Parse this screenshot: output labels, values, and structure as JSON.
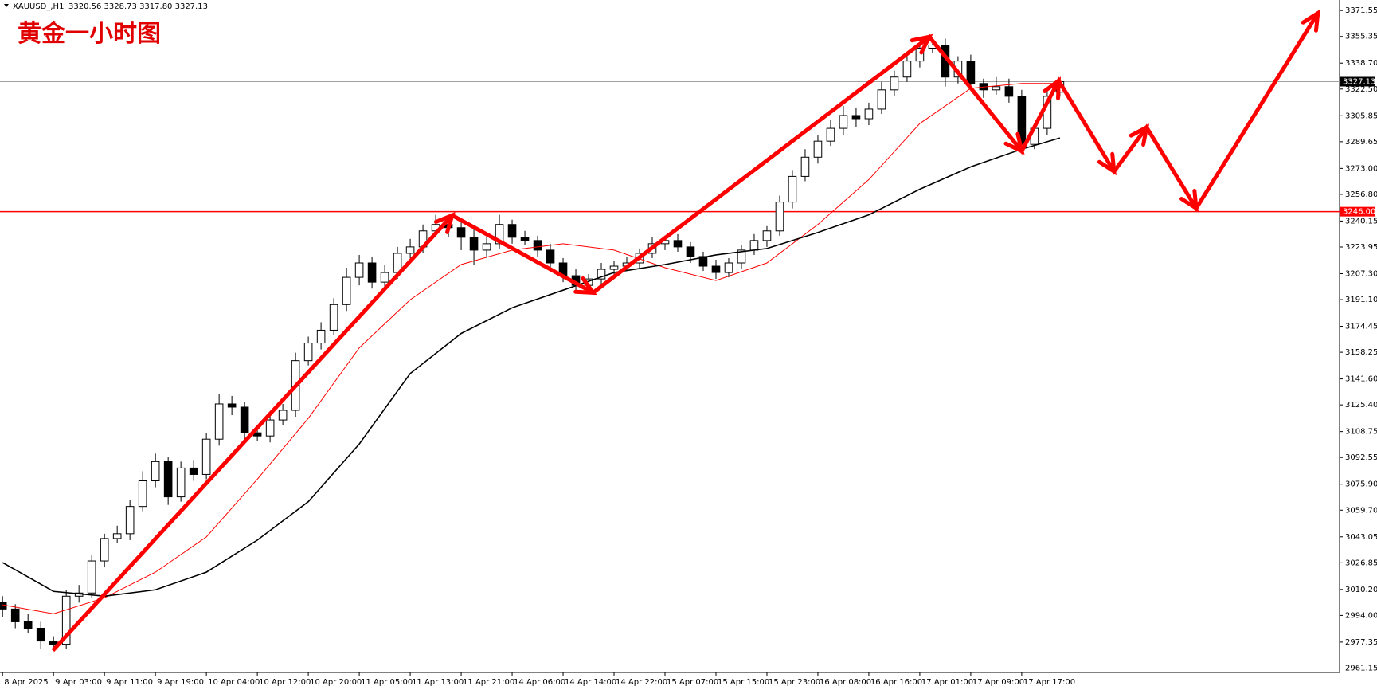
{
  "chart_data": {
    "type": "candlestick",
    "title": "黄金一小时图",
    "symbol": "XAUUSD_,H1",
    "ohlc_text": "3320.56 3328.73 3317.80 3327.13",
    "x": [
      0,
      2,
      4,
      6,
      8,
      10,
      12,
      14,
      16,
      18,
      20,
      22,
      24,
      26,
      28,
      30,
      32,
      34,
      36,
      38,
      40,
      42,
      44,
      46,
      48,
      50,
      52,
      54,
      56,
      58,
      60,
      62,
      64,
      66,
      68,
      70,
      72,
      74,
      76,
      78,
      80,
      82,
      84,
      86,
      88,
      90,
      92,
      94,
      96,
      98,
      100,
      102,
      104,
      106,
      108,
      110,
      112,
      114,
      116,
      118,
      120,
      122,
      124,
      126,
      128,
      130,
      132,
      134,
      136,
      138,
      140,
      142,
      144,
      146,
      148,
      150,
      152,
      154,
      156,
      158,
      160,
      162,
      164,
      166
    ],
    "open": [
      3002,
      2998,
      2990,
      2986,
      2978,
      2976,
      3006,
      3008,
      3028,
      3042,
      3045,
      3062,
      3078,
      3090,
      3068,
      3086,
      3082,
      3104,
      3126,
      3124,
      3108,
      3106,
      3116,
      3122,
      3153,
      3164,
      3172,
      3188,
      3205,
      3214,
      3202,
      3208,
      3220,
      3224,
      3234,
      3238,
      3236,
      3230,
      3222,
      3226,
      3238,
      3230,
      3228,
      3222,
      3214,
      3206,
      3200,
      3204,
      3210,
      3212,
      3214,
      3220,
      3226,
      3228,
      3224,
      3218,
      3212,
      3208,
      3214,
      3222,
      3228,
      3234,
      3252,
      3268,
      3280,
      3290,
      3298,
      3306,
      3304,
      3310,
      3322,
      3330,
      3340,
      3348,
      3350,
      3330,
      3340,
      3326,
      3322,
      3324,
      3318,
      3288,
      3298,
      3320.56
    ],
    "high": [
      3006,
      3001,
      2995,
      2990,
      2981,
      3010,
      3013,
      3032,
      3045,
      3050,
      3066,
      3084,
      3095,
      3093,
      3090,
      3091,
      3108,
      3132,
      3131,
      3127,
      3112,
      3121,
      3126,
      3158,
      3168,
      3177,
      3192,
      3211,
      3219,
      3218,
      3213,
      3224,
      3229,
      3238,
      3244,
      3243,
      3240,
      3235,
      3230,
      3244,
      3241,
      3234,
      3231,
      3226,
      3217,
      3210,
      3207,
      3214,
      3215,
      3218,
      3223,
      3230,
      3231,
      3232,
      3227,
      3221,
      3216,
      3217,
      3225,
      3232,
      3237,
      3256,
      3272,
      3285,
      3294,
      3303,
      3312,
      3311,
      3314,
      3327,
      3334,
      3345,
      3352,
      3355,
      3354,
      3343,
      3344,
      3329,
      3330,
      3329,
      3322,
      3301,
      3323,
      3328.73
    ],
    "low": [
      2993,
      2986,
      2983,
      2973,
      2972,
      2973,
      3002,
      3005,
      3024,
      3039,
      3041,
      3059,
      3074,
      3063,
      3065,
      3078,
      3079,
      3100,
      3119,
      3104,
      3103,
      3102,
      3113,
      3118,
      3150,
      3160,
      3169,
      3184,
      3200,
      3198,
      3199,
      3204,
      3217,
      3220,
      3231,
      3230,
      3222,
      3213,
      3218,
      3223,
      3226,
      3225,
      3218,
      3211,
      3202,
      3195,
      3196,
      3201,
      3206,
      3209,
      3210,
      3217,
      3222,
      3221,
      3214,
      3209,
      3204,
      3205,
      3210,
      3219,
      3224,
      3231,
      3248,
      3265,
      3276,
      3287,
      3294,
      3299,
      3300,
      3307,
      3318,
      3327,
      3336,
      3345,
      3324,
      3326,
      3322,
      3317,
      3319,
      3314,
      3283,
      3285,
      3294,
      3317.8
    ],
    "close": [
      2998,
      2990,
      2986,
      2978,
      2976,
      3006,
      3008,
      3028,
      3042,
      3045,
      3062,
      3078,
      3090,
      3068,
      3086,
      3082,
      3104,
      3126,
      3124,
      3108,
      3106,
      3116,
      3122,
      3153,
      3164,
      3172,
      3188,
      3205,
      3214,
      3202,
      3208,
      3220,
      3224,
      3234,
      3238,
      3236,
      3230,
      3222,
      3226,
      3238,
      3230,
      3228,
      3222,
      3214,
      3206,
      3200,
      3204,
      3210,
      3212,
      3214,
      3220,
      3226,
      3228,
      3224,
      3218,
      3212,
      3208,
      3214,
      3222,
      3228,
      3234,
      3252,
      3268,
      3280,
      3290,
      3298,
      3306,
      3304,
      3310,
      3322,
      3330,
      3340,
      3348,
      3350,
      3330,
      3340,
      3326,
      3322,
      3324,
      3318,
      3288,
      3298,
      3318,
      3327.13
    ],
    "moving_averages": [
      {
        "color": "#ff0000",
        "width": 1,
        "x": [
          0,
          8,
          16,
          24,
          32,
          40,
          48,
          56,
          64,
          72,
          80,
          88,
          96,
          104,
          112,
          120,
          128,
          136,
          144,
          152,
          160,
          166
        ],
        "values": [
          3000.6,
          2995,
          3005,
          3021,
          3043,
          3079,
          3117,
          3161,
          3191,
          3213,
          3222,
          3226,
          3222,
          3211,
          3203,
          3214,
          3238,
          3266,
          3301,
          3323,
          3326,
          3326
        ]
      },
      {
        "color": "#000000",
        "width": 1.6,
        "x": [
          0,
          8,
          16,
          24,
          32,
          40,
          48,
          56,
          64,
          72,
          80,
          88,
          96,
          104,
          112,
          120,
          128,
          136,
          144,
          152,
          160,
          166
        ],
        "values": [
          3027,
          3009,
          3006,
          3010,
          3021,
          3041,
          3065,
          3101,
          3145,
          3170,
          3186,
          3197,
          3208,
          3213,
          3219,
          3223,
          3233,
          3244,
          3260,
          3274,
          3285,
          3292
        ]
      }
    ],
    "arrows": {
      "color": "#ff0000",
      "x": [
        7.9,
        70.6,
        92.7,
        145.5,
        160,
        165.8,
        174.5,
        179.6,
        187.4,
        206.5
      ],
      "values": [
        2972.1,
        3243.7,
        3195.4,
        3355.1,
        3283.8,
        3327.7,
        3271.1,
        3298.6,
        3248.1,
        3369.9
      ]
    },
    "hline": {
      "value": 3246,
      "label": "3246.00",
      "color": "#ff0000"
    },
    "last_price": 3327.13,
    "xlim": [
      -0.4,
      209.9
    ],
    "ylim": [
      2958.4,
      3378.1
    ],
    "xticks": [
      {
        "value": 0,
        "label": "8 Apr 2025"
      },
      {
        "value": 8,
        "label": "9 Apr 03:00"
      },
      {
        "value": 16,
        "label": "9 Apr 11:00"
      },
      {
        "value": 24,
        "label": "9 Apr 19:00"
      },
      {
        "value": 32,
        "label": "10 Apr 04:00"
      },
      {
        "value": 40,
        "label": "10 Apr 12:00"
      },
      {
        "value": 48,
        "label": "10 Apr 20:00"
      },
      {
        "value": 56,
        "label": "11 Apr 05:00"
      },
      {
        "value": 64,
        "label": "11 Apr 13:00"
      },
      {
        "value": 72,
        "label": "11 Apr 21:00"
      },
      {
        "value": 80,
        "label": "14 Apr 06:00"
      },
      {
        "value": 88,
        "label": "14 Apr 14:00"
      },
      {
        "value": 96,
        "label": "14 Apr 22:00"
      },
      {
        "value": 104,
        "label": "15 Apr 07:00"
      },
      {
        "value": 112,
        "label": "15 Apr 15:00"
      },
      {
        "value": 120,
        "label": "15 Apr 23:00"
      },
      {
        "value": 128,
        "label": "16 Apr 08:00"
      },
      {
        "value": 136,
        "label": "16 Apr 16:00"
      },
      {
        "value": 144,
        "label": "17 Apr 01:00"
      },
      {
        "value": 152,
        "label": "17 Apr 09:00"
      },
      {
        "value": 160,
        "label": "17 Apr 17:00"
      }
    ],
    "yticks": [
      3371.55,
      3355.35,
      {
        "value": 3338.7,
        "label": "3338.70"
      },
      {
        "value": 3322.5,
        "label": "3322.50"
      },
      3305.85,
      3289.65,
      {
        "value": 3273,
        "label": "3273.00"
      },
      {
        "value": 3256.8,
        "label": "3256.80"
      },
      3240.15,
      3223.95,
      {
        "value": 3207.3,
        "label": "3207.30"
      },
      {
        "value": 3191.1,
        "label": "3191.10"
      },
      3174.45,
      3158.25,
      {
        "value": 3141.6,
        "label": "3141.60"
      },
      {
        "value": 3125.4,
        "label": "3125.40"
      },
      3108.75,
      3092.55,
      {
        "value": 3075.9,
        "label": "3075.90"
      },
      {
        "value": 3059.7,
        "label": "3059.70"
      },
      3043.05,
      3026.85,
      {
        "value": 3010.2,
        "label": "3010.20"
      },
      {
        "value": 2994,
        "label": "2994.00"
      },
      2977.35,
      2961.15
    ]
  }
}
